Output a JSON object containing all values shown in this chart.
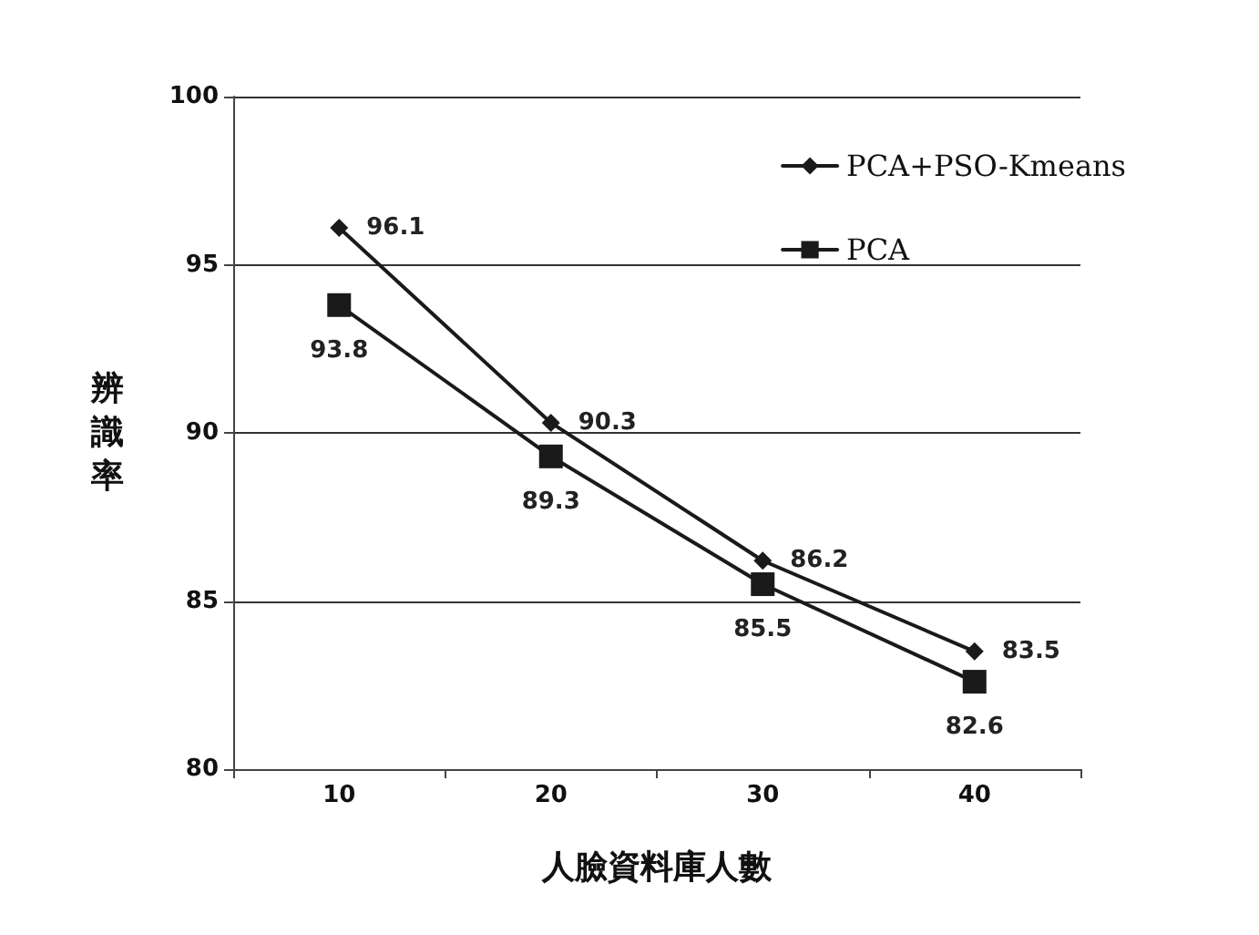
{
  "chart_data": {
    "type": "line",
    "xlabel": "人臉資料庫人數",
    "ylabel": "辨識率",
    "categories": [
      "10",
      "20",
      "30",
      "40"
    ],
    "series": [
      {
        "name": "PCA+PSO-Kmeans",
        "color": "#1a1a1a",
        "marker": "diamond",
        "values": [
          96.1,
          90.3,
          86.2,
          83.5
        ]
      },
      {
        "name": "PCA",
        "color": "#1a1a1a",
        "marker": "square",
        "values": [
          93.8,
          89.3,
          85.5,
          82.6
        ]
      }
    ],
    "ylim": [
      80,
      100
    ],
    "yticks": [
      80,
      85,
      90,
      95,
      100
    ],
    "grid": "y",
    "legend": "top right",
    "data_labels": true,
    "line_style": "solid"
  }
}
